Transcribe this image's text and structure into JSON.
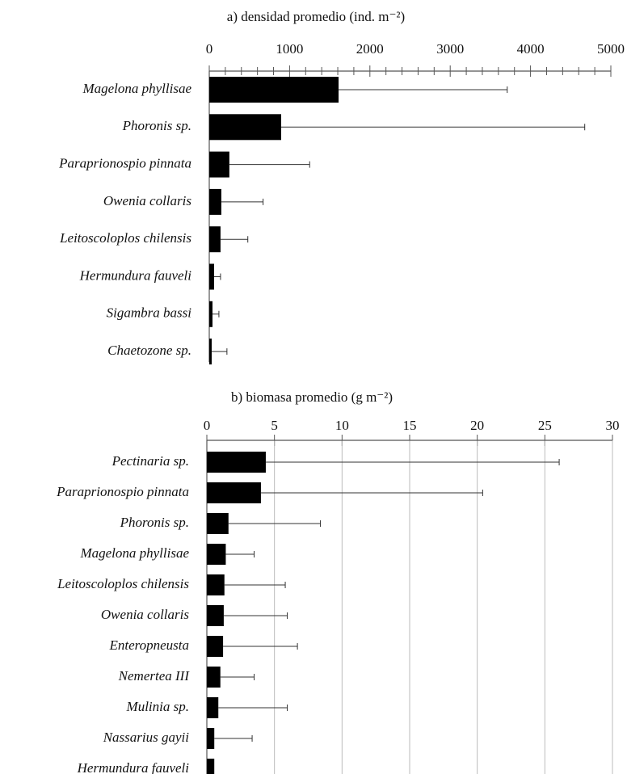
{
  "chart_data": [
    {
      "type": "barh",
      "title": "a) densidad promedio  (ind. m⁻²)",
      "categories": [
        "Magelona phyllisae",
        "Phoronis sp.",
        "Paraprionospio pinnata",
        "Owenia collaris",
        "Leitoscoloplos chilensis",
        "Hermundura fauveli",
        "Sigambra bassi",
        "Chaetozone sp."
      ],
      "values": [
        1610,
        895,
        250,
        150,
        140,
        60,
        40,
        30
      ],
      "errors": [
        2100,
        3780,
        1000,
        520,
        340,
        80,
        80,
        190
      ],
      "color": "#000000",
      "xlim": [
        0,
        5000
      ],
      "xticks": [
        0,
        1000,
        2000,
        3000,
        4000,
        5000
      ],
      "minor_xticks": [
        200,
        400,
        600,
        800,
        1200,
        1400,
        1600,
        1800,
        2200,
        2400,
        2600,
        2800,
        3200,
        3400,
        3600,
        3800,
        4200,
        4400,
        4600,
        4800
      ],
      "grid": false
    },
    {
      "type": "barh",
      "title": "b) biomasa promedio  (g m⁻²)",
      "categories": [
        "Pectinaria sp.",
        "Paraprionospio pinnata",
        "Phoronis sp.",
        "Magelona phyllisae",
        "Leitoscoloplos chilensis",
        "Owenia collaris",
        "Enteropneusta",
        "Nemertea III",
        "Mulinia sp.",
        "Nassarius gayii",
        "Hermundura fauveli"
      ],
      "values": [
        4.36,
        4.0,
        1.6,
        1.4,
        1.3,
        1.25,
        1.2,
        1.0,
        0.85,
        0.55,
        0.55
      ],
      "errors": [
        21.7,
        16.4,
        6.8,
        2.1,
        4.5,
        4.7,
        5.5,
        2.5,
        5.1,
        2.8,
        null
      ],
      "color": "#000000",
      "xlim": [
        0,
        30
      ],
      "xticks": [
        0,
        5,
        10,
        15,
        20,
        25,
        30
      ],
      "grid": true
    }
  ]
}
